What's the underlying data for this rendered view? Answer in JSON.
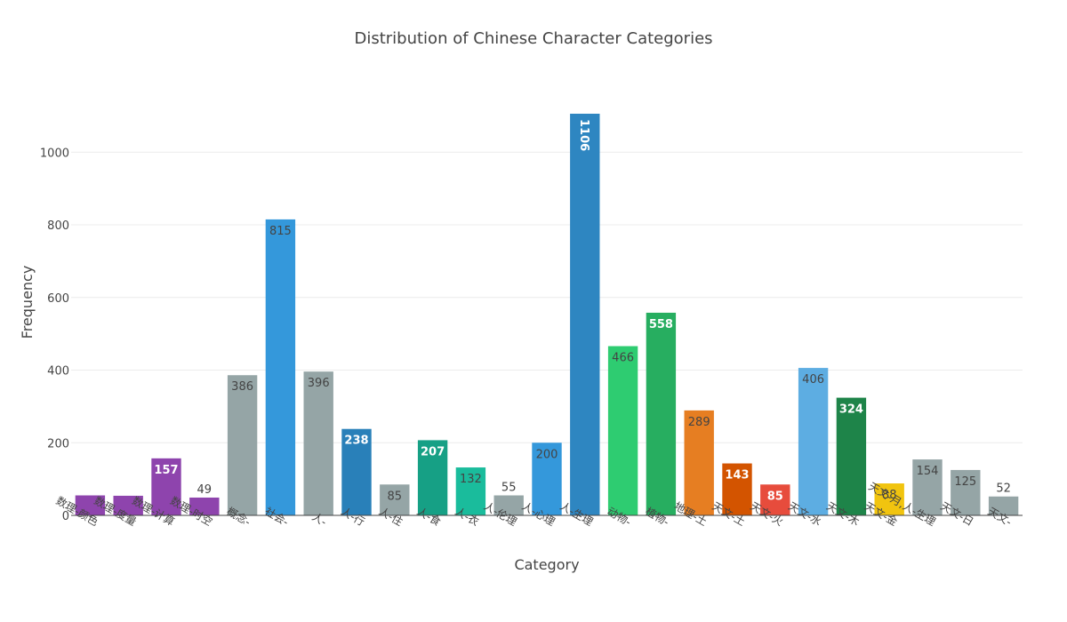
{
  "chart_data": {
    "type": "bar",
    "title": "Distribution of Chinese Character Categories",
    "xlabel": "Category",
    "ylabel": "Frequency",
    "ylim": [
      0,
      1150
    ],
    "y_ticks": [
      0,
      200,
      400,
      600,
      800,
      1000
    ],
    "grid": true,
    "legend": "none",
    "categories": [
      "数理-颜色",
      "数理-度量",
      "数理-计算",
      "数理-时空",
      "概念-",
      "社会-",
      "人-",
      "人-行",
      "人-住",
      "人-食",
      "人-衣",
      "人-伦理",
      "人-心理",
      "人-生理",
      "动物-",
      "植物-",
      "地理-土",
      "天文-土",
      "天文-火",
      "天文-水",
      "天文-木",
      "天文-金",
      "天文-月,人-生理",
      "天文-日",
      "天文-"
    ],
    "values": [
      55,
      54,
      157,
      49,
      386,
      815,
      396,
      238,
      85,
      207,
      132,
      55,
      200,
      1106,
      466,
      558,
      289,
      143,
      85,
      406,
      324,
      88,
      154,
      125,
      52
    ],
    "colors": [
      "#8e44ad",
      "#8e44ad",
      "#8e44ad",
      "#8e44ad",
      "#95a5a6",
      "#3498db",
      "#95a5a6",
      "#2980b9",
      "#95a5a6",
      "#16a085",
      "#1abc9c",
      "#95a5a6",
      "#3498db",
      "#2e86c1",
      "#2ecc71",
      "#27ae60",
      "#e67e22",
      "#d35400",
      "#e74c3c",
      "#5dade2",
      "#1e8449",
      "#f1c40f",
      "#95a5a6",
      "#95a5a6",
      "#95a5a6"
    ],
    "label_colors": [
      "#ffffff",
      "#ffffff",
      "#ffffff",
      "#444444",
      "#444444",
      "#444444",
      "#444444",
      "#ffffff",
      "#444444",
      "#ffffff",
      "#444444",
      "#444444",
      "#444444",
      "#ffffff",
      "#444444",
      "#ffffff",
      "#444444",
      "#ffffff",
      "#ffffff",
      "#444444",
      "#ffffff",
      "#444444",
      "#444444",
      "#444444",
      "#444444"
    ]
  }
}
